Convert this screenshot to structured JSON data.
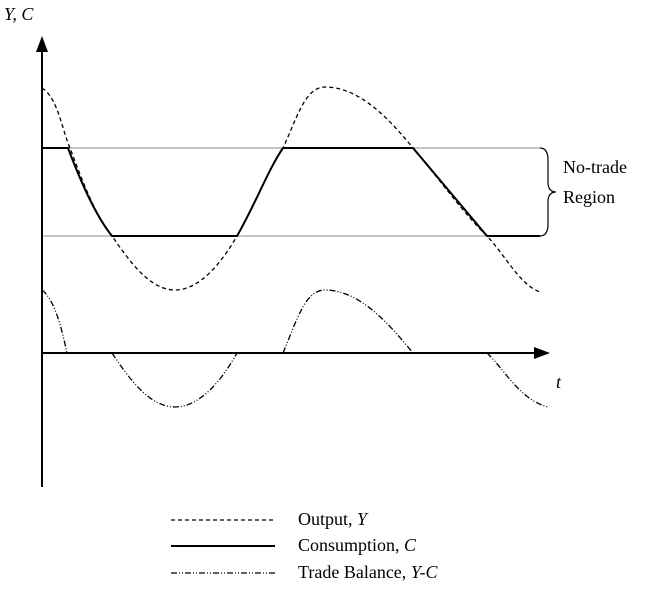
{
  "axes": {
    "y_label": "Y, C",
    "x_label": "t"
  },
  "bracket": {
    "line1": "No-trade",
    "line2": "Region"
  },
  "legend": [
    {
      "text": "Output, ",
      "symbol": "Y"
    },
    {
      "text": "Consumption, ",
      "symbol": "C"
    },
    {
      "text": "Trade Balance, ",
      "symbol": "Y-C"
    }
  ]
}
